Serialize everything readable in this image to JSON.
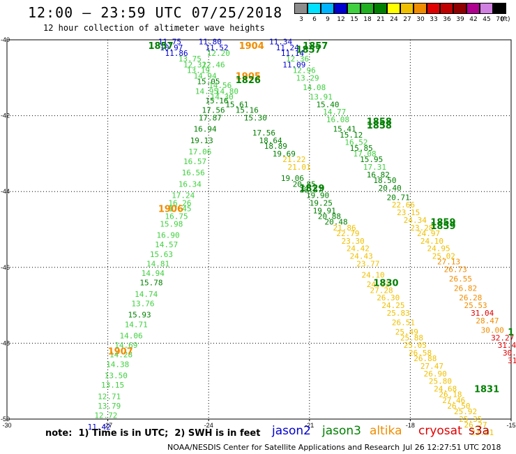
{
  "header": {
    "title": "12:00 – 23:59 UTC 07/25/2018",
    "subtitle": "12 hour collection of altimeter wave heights"
  },
  "legend": {
    "unit": "(ft)",
    "bins": [
      {
        "label": "3",
        "color": "#8c8c8c"
      },
      {
        "label": "6",
        "color": "#00e0ff"
      },
      {
        "label": "9",
        "color": "#00b4ff"
      },
      {
        "label": "12",
        "color": "#0000d0"
      },
      {
        "label": "15",
        "color": "#40d040"
      },
      {
        "label": "18",
        "color": "#20b020"
      },
      {
        "label": "21",
        "color": "#008000"
      },
      {
        "label": "24",
        "color": "#ffff00"
      },
      {
        "label": "27",
        "color": "#f0c000"
      },
      {
        "label": "30",
        "color": "#f08c00"
      },
      {
        "label": "33",
        "color": "#e00000"
      },
      {
        "label": "36",
        "color": "#c00000"
      },
      {
        "label": "39",
        "color": "#900000"
      },
      {
        "label": "42",
        "color": "#b00090"
      },
      {
        "label": "45",
        "color": "#d080e0"
      },
      {
        "label": "70",
        "color": "#000000"
      }
    ]
  },
  "axes": {
    "lon_ticks": [
      "-30",
      "-27",
      "-24",
      "-21",
      "-18",
      "-15"
    ],
    "lat_ticks": [
      "-40",
      "-42",
      "-44",
      "-46",
      "-48",
      "-50"
    ]
  },
  "map_data": {
    "extent": {
      "lon_min": -30,
      "lon_max": -15,
      "lat_min": -50,
      "lat_max": -40
    },
    "time_labels": [
      {
        "text": "1857",
        "lon": -25.8,
        "lat": -40.15,
        "color": "#008000"
      },
      {
        "text": "1904",
        "lon": -23.1,
        "lat": -40.15,
        "color": "#f08c00"
      },
      {
        "text": "1905",
        "lon": -23.2,
        "lat": -40.95,
        "color": "#f08c00"
      },
      {
        "text": "1826",
        "lon": -23.2,
        "lat": -41.05,
        "color": "#008000"
      },
      {
        "text": "1857",
        "lon": -21.2,
        "lat": -40.15,
        "color": "#008000"
      },
      {
        "text": "1857",
        "lon": -21.4,
        "lat": -40.25,
        "color": "#008000"
      },
      {
        "text": "1858",
        "lon": -19.3,
        "lat": -42.15,
        "color": "#008000"
      },
      {
        "text": "1858",
        "lon": -19.3,
        "lat": -42.25,
        "color": "#008000"
      },
      {
        "text": "1829",
        "lon": -21.3,
        "lat": -43.9,
        "color": "#008000"
      },
      {
        "text": "1906",
        "lon": -25.5,
        "lat": -44.45,
        "color": "#f08c00"
      },
      {
        "text": "1859",
        "lon": -17.4,
        "lat": -44.8,
        "color": "#008000"
      },
      {
        "text": "1859",
        "lon": -17.4,
        "lat": -44.9,
        "color": "#008000"
      },
      {
        "text": "1830",
        "lon": -19.1,
        "lat": -46.4,
        "color": "#008000"
      },
      {
        "text": "1907",
        "lon": -27.0,
        "lat": -48.2,
        "color": "#f08c00"
      },
      {
        "text": "1831",
        "lon": -16.1,
        "lat": -49.2,
        "color": "#008000"
      },
      {
        "text": "1",
        "lon": -15.1,
        "lat": -47.7,
        "color": "#008000"
      }
    ],
    "wave_heights": [
      {
        "v": "11.75",
        "lon": -25.5,
        "lat": -40.05,
        "color": "#0000d0"
      },
      {
        "v": "11.80",
        "lon": -24.3,
        "lat": -40.05,
        "color": "#0000d0"
      },
      {
        "v": "10.97",
        "lon": -25.45,
        "lat": -40.2,
        "color": "#0000d0"
      },
      {
        "v": "11.52",
        "lon": -24.1,
        "lat": -40.2,
        "color": "#0000d0"
      },
      {
        "v": "11.86",
        "lon": -25.3,
        "lat": -40.35,
        "color": "#0000d0"
      },
      {
        "v": "12.20",
        "lon": -24.05,
        "lat": -40.35,
        "color": "#40d040"
      },
      {
        "v": "13.75",
        "lon": -24.9,
        "lat": -40.5,
        "color": "#40d040"
      },
      {
        "v": "12.32",
        "lon": -24.75,
        "lat": -40.65,
        "color": "#40d040"
      },
      {
        "v": "12.46",
        "lon": -24.2,
        "lat": -40.65,
        "color": "#40d040"
      },
      {
        "v": "13.19",
        "lon": -24.65,
        "lat": -40.8,
        "color": "#40d040"
      },
      {
        "v": "14.94",
        "lon": -24.45,
        "lat": -40.95,
        "color": "#40d040"
      },
      {
        "v": "15.05",
        "lon": -24.35,
        "lat": -41.1,
        "color": "#008000"
      },
      {
        "v": "14.56",
        "lon": -24.0,
        "lat": -41.2,
        "color": "#40d040"
      },
      {
        "v": "14.95",
        "lon": -24.4,
        "lat": -41.35,
        "color": "#40d040"
      },
      {
        "v": "14.80",
        "lon": -23.8,
        "lat": -41.35,
        "color": "#40d040"
      },
      {
        "v": "14.30",
        "lon": -23.95,
        "lat": -41.5,
        "color": "#40d040"
      },
      {
        "v": "15.16",
        "lon": -24.1,
        "lat": -41.6,
        "color": "#008000"
      },
      {
        "v": "15.61",
        "lon": -23.5,
        "lat": -41.7,
        "color": "#008000"
      },
      {
        "v": "17.56",
        "lon": -24.2,
        "lat": -41.85,
        "color": "#008000"
      },
      {
        "v": "15.16",
        "lon": -23.2,
        "lat": -41.85,
        "color": "#008000"
      },
      {
        "v": "17.87",
        "lon": -24.3,
        "lat": -42.05,
        "color": "#008000"
      },
      {
        "v": "15.30",
        "lon": -22.95,
        "lat": -42.05,
        "color": "#008000"
      },
      {
        "v": "16.94",
        "lon": -24.45,
        "lat": -42.35,
        "color": "#008000"
      },
      {
        "v": "17.56",
        "lon": -22.7,
        "lat": -42.45,
        "color": "#008000"
      },
      {
        "v": "19.13",
        "lon": -24.55,
        "lat": -42.65,
        "color": "#008000"
      },
      {
        "v": "18.64",
        "lon": -22.5,
        "lat": -42.65,
        "color": "#008000"
      },
      {
        "v": "17.06",
        "lon": -24.6,
        "lat": -42.95,
        "color": "#40d040"
      },
      {
        "v": "18.89",
        "lon": -22.35,
        "lat": -42.8,
        "color": "#008000"
      },
      {
        "v": "19.69",
        "lon": -22.1,
        "lat": -43.0,
        "color": "#008000"
      },
      {
        "v": "16.57",
        "lon": -24.75,
        "lat": -43.2,
        "color": "#40d040"
      },
      {
        "v": "21.22",
        "lon": -21.8,
        "lat": -43.15,
        "color": "#f0c000"
      },
      {
        "v": "21.01",
        "lon": -21.65,
        "lat": -43.35,
        "color": "#f0c000"
      },
      {
        "v": "16.56",
        "lon": -24.8,
        "lat": -43.5,
        "color": "#40d040"
      },
      {
        "v": "19.06",
        "lon": -21.85,
        "lat": -43.65,
        "color": "#008000"
      },
      {
        "v": "16.34",
        "lon": -24.9,
        "lat": -43.8,
        "color": "#40d040"
      },
      {
        "v": "20.85",
        "lon": -21.5,
        "lat": -43.8,
        "color": "#008000"
      },
      {
        "v": "17.24",
        "lon": -25.1,
        "lat": -44.1,
        "color": "#40d040"
      },
      {
        "v": "19.57",
        "lon": -21.3,
        "lat": -43.95,
        "color": "#008000"
      },
      {
        "v": "16.26",
        "lon": -25.2,
        "lat": -44.3,
        "color": "#40d040"
      },
      {
        "v": "19.90",
        "lon": -21.1,
        "lat": -44.1,
        "color": "#008000"
      },
      {
        "v": "19.25",
        "lon": -21.0,
        "lat": -44.3,
        "color": "#008000"
      },
      {
        "v": "17.45",
        "lon": -25.2,
        "lat": -44.45,
        "color": "#40d040"
      },
      {
        "v": "19.91",
        "lon": -20.9,
        "lat": -44.5,
        "color": "#008000"
      },
      {
        "v": "16.75",
        "lon": -25.3,
        "lat": -44.65,
        "color": "#40d040"
      },
      {
        "v": "20.88",
        "lon": -20.75,
        "lat": -44.65,
        "color": "#008000"
      },
      {
        "v": "15.98",
        "lon": -25.45,
        "lat": -44.85,
        "color": "#40d040"
      },
      {
        "v": "20.48",
        "lon": -20.55,
        "lat": -44.8,
        "color": "#008000"
      },
      {
        "v": "21.86",
        "lon": -20.3,
        "lat": -44.95,
        "color": "#f0c000"
      },
      {
        "v": "16.90",
        "lon": -25.55,
        "lat": -45.15,
        "color": "#40d040"
      },
      {
        "v": "22.79",
        "lon": -20.2,
        "lat": -45.1,
        "color": "#f0c000"
      },
      {
        "v": "14.57",
        "lon": -25.6,
        "lat": -45.4,
        "color": "#40d040"
      },
      {
        "v": "23.30",
        "lon": -20.05,
        "lat": -45.3,
        "color": "#f0c000"
      },
      {
        "v": "15.63",
        "lon": -25.75,
        "lat": -45.65,
        "color": "#40d040"
      },
      {
        "v": "24.42",
        "lon": -19.9,
        "lat": -45.5,
        "color": "#f0c000"
      },
      {
        "v": "24.43",
        "lon": -19.8,
        "lat": -45.7,
        "color": "#f0c000"
      },
      {
        "v": "14.81",
        "lon": -25.85,
        "lat": -45.9,
        "color": "#40d040"
      },
      {
        "v": "23.77",
        "lon": -19.6,
        "lat": -45.9,
        "color": "#f0c000"
      },
      {
        "v": "14.94",
        "lon": -26.0,
        "lat": -46.15,
        "color": "#40d040"
      },
      {
        "v": "24.10",
        "lon": -19.45,
        "lat": -46.2,
        "color": "#f0c000"
      },
      {
        "v": "15.78",
        "lon": -26.05,
        "lat": -46.4,
        "color": "#008000"
      },
      {
        "v": "24.03",
        "lon": -19.3,
        "lat": -46.45,
        "color": "#f0c000"
      },
      {
        "v": "27.28",
        "lon": -19.2,
        "lat": -46.6,
        "color": "#f0c000"
      },
      {
        "v": "14.74",
        "lon": -26.2,
        "lat": -46.7,
        "color": "#40d040"
      },
      {
        "v": "26.30",
        "lon": -19.0,
        "lat": -46.8,
        "color": "#f0c000"
      },
      {
        "v": "13.76",
        "lon": -26.3,
        "lat": -46.95,
        "color": "#40d040"
      },
      {
        "v": "24.25",
        "lon": -18.85,
        "lat": -47.0,
        "color": "#f0c000"
      },
      {
        "v": "15.93",
        "lon": -26.4,
        "lat": -47.25,
        "color": "#008000"
      },
      {
        "v": "25.83",
        "lon": -18.7,
        "lat": -47.2,
        "color": "#f0c000"
      },
      {
        "v": "14.71",
        "lon": -26.5,
        "lat": -47.5,
        "color": "#40d040"
      },
      {
        "v": "26.51",
        "lon": -18.55,
        "lat": -47.45,
        "color": "#f0c000"
      },
      {
        "v": "25.49",
        "lon": -18.45,
        "lat": -47.7,
        "color": "#f0c000"
      },
      {
        "v": "14.06",
        "lon": -26.65,
        "lat": -47.8,
        "color": "#40d040"
      },
      {
        "v": "25.88",
        "lon": -18.3,
        "lat": -47.85,
        "color": "#f0c000"
      },
      {
        "v": "14.69",
        "lon": -26.8,
        "lat": -48.05,
        "color": "#40d040"
      },
      {
        "v": "25.05",
        "lon": -18.2,
        "lat": -48.05,
        "color": "#f0c000"
      },
      {
        "v": "26.58",
        "lon": -18.05,
        "lat": -48.25,
        "color": "#f0c000"
      },
      {
        "v": "14.28",
        "lon": -26.95,
        "lat": -48.3,
        "color": "#40d040"
      },
      {
        "v": "26.88",
        "lon": -17.9,
        "lat": -48.4,
        "color": "#f0c000"
      },
      {
        "v": "14.38",
        "lon": -27.05,
        "lat": -48.55,
        "color": "#40d040"
      },
      {
        "v": "27.47",
        "lon": -17.7,
        "lat": -48.6,
        "color": "#f0c000"
      },
      {
        "v": "13.50",
        "lon": -27.1,
        "lat": -48.85,
        "color": "#40d040"
      },
      {
        "v": "26.90",
        "lon": -17.6,
        "lat": -48.8,
        "color": "#f0c000"
      },
      {
        "v": "25.80",
        "lon": -17.45,
        "lat": -49.0,
        "color": "#f0c000"
      },
      {
        "v": "13.15",
        "lon": -27.2,
        "lat": -49.1,
        "color": "#40d040"
      },
      {
        "v": "24.68",
        "lon": -17.3,
        "lat": -49.2,
        "color": "#f0c000"
      },
      {
        "v": "26.18",
        "lon": -17.15,
        "lat": -49.35,
        "color": "#f0c000"
      },
      {
        "v": "12.71",
        "lon": -27.3,
        "lat": -49.4,
        "color": "#40d040"
      },
      {
        "v": "27.46",
        "lon": -17.05,
        "lat": -49.5,
        "color": "#f0c000"
      },
      {
        "v": "26.50",
        "lon": -16.9,
        "lat": -49.65,
        "color": "#f0c000"
      },
      {
        "v": "13.79",
        "lon": -27.3,
        "lat": -49.65,
        "color": "#40d040"
      },
      {
        "v": "25.92",
        "lon": -16.7,
        "lat": -49.8,
        "color": "#f0c000"
      },
      {
        "v": "12.72",
        "lon": -27.4,
        "lat": -49.9,
        "color": "#40d040"
      },
      {
        "v": "25.35",
        "lon": -16.55,
        "lat": -50.0,
        "color": "#f0c000"
      },
      {
        "v": "26.27",
        "lon": -16.4,
        "lat": -50.15,
        "color": "#f0c000"
      },
      {
        "v": "11.42",
        "lon": -27.6,
        "lat": -50.2,
        "color": "#0000d0"
      },
      {
        "v": "23.01",
        "lon": -16.2,
        "lat": -50.35,
        "color": "#f0c000"
      },
      {
        "v": "11.34",
        "lon": -22.2,
        "lat": -40.05,
        "color": "#0000d0"
      },
      {
        "v": "11.24",
        "lon": -22.0,
        "lat": -40.2,
        "color": "#0000d0"
      },
      {
        "v": "11.14",
        "lon": -21.85,
        "lat": -40.35,
        "color": "#0000d0"
      },
      {
        "v": "12.36",
        "lon": -21.7,
        "lat": -40.5,
        "color": "#40d040"
      },
      {
        "v": "11.09",
        "lon": -21.8,
        "lat": -40.65,
        "color": "#0000d0"
      },
      {
        "v": "12.96",
        "lon": -21.5,
        "lat": -40.8,
        "color": "#40d040"
      },
      {
        "v": "13.29",
        "lon": -21.4,
        "lat": -41.0,
        "color": "#40d040"
      },
      {
        "v": "14.08",
        "lon": -21.2,
        "lat": -41.25,
        "color": "#40d040"
      },
      {
        "v": "13.91",
        "lon": -21.0,
        "lat": -41.5,
        "color": "#40d040"
      },
      {
        "v": "15.40",
        "lon": -20.8,
        "lat": -41.7,
        "color": "#008000"
      },
      {
        "v": "14.77",
        "lon": -20.6,
        "lat": -41.9,
        "color": "#40d040"
      },
      {
        "v": "16.08",
        "lon": -20.5,
        "lat": -42.1,
        "color": "#40d040"
      },
      {
        "v": "15.41",
        "lon": -20.3,
        "lat": -42.35,
        "color": "#008000"
      },
      {
        "v": "15.12",
        "lon": -20.1,
        "lat": -42.5,
        "color": "#008000"
      },
      {
        "v": "16.52",
        "lon": -19.95,
        "lat": -42.7,
        "color": "#40d040"
      },
      {
        "v": "15.85",
        "lon": -19.8,
        "lat": -42.85,
        "color": "#008000"
      },
      {
        "v": "17.08",
        "lon": -19.7,
        "lat": -43.0,
        "color": "#40d040"
      },
      {
        "v": "15.95",
        "lon": -19.5,
        "lat": -43.15,
        "color": "#008000"
      },
      {
        "v": "17.31",
        "lon": -19.4,
        "lat": -43.35,
        "color": "#40d040"
      },
      {
        "v": "16.82",
        "lon": -19.3,
        "lat": -43.55,
        "color": "#008000"
      },
      {
        "v": "18.50",
        "lon": -19.1,
        "lat": -43.7,
        "color": "#008000"
      },
      {
        "v": "20.40",
        "lon": -18.95,
        "lat": -43.9,
        "color": "#008000"
      },
      {
        "v": "20.71",
        "lon": -18.7,
        "lat": -44.15,
        "color": "#008000"
      },
      {
        "v": "22.66",
        "lon": -18.55,
        "lat": -44.35,
        "color": "#f0c000"
      },
      {
        "v": "23.15",
        "lon": -18.4,
        "lat": -44.55,
        "color": "#f0c000"
      },
      {
        "v": "24.34",
        "lon": -18.2,
        "lat": -44.75,
        "color": "#f0c000"
      },
      {
        "v": "23.28",
        "lon": -18.0,
        "lat": -44.95,
        "color": "#f0c000"
      },
      {
        "v": "24.97",
        "lon": -17.8,
        "lat": -45.1,
        "color": "#f0c000"
      },
      {
        "v": "24.10",
        "lon": -17.7,
        "lat": -45.3,
        "color": "#f0c000"
      },
      {
        "v": "24.95",
        "lon": -17.5,
        "lat": -45.5,
        "color": "#f0c000"
      },
      {
        "v": "25.02",
        "lon": -17.35,
        "lat": -45.7,
        "color": "#f0c000"
      },
      {
        "v": "27.13",
        "lon": -17.2,
        "lat": -45.85,
        "color": "#f08c00"
      },
      {
        "v": "26.73",
        "lon": -17.0,
        "lat": -46.05,
        "color": "#f08c00"
      },
      {
        "v": "26.55",
        "lon": -16.85,
        "lat": -46.3,
        "color": "#f08c00"
      },
      {
        "v": "26.82",
        "lon": -16.7,
        "lat": -46.55,
        "color": "#f08c00"
      },
      {
        "v": "26.28",
        "lon": -16.55,
        "lat": -46.8,
        "color": "#f08c00"
      },
      {
        "v": "25.53",
        "lon": -16.4,
        "lat": -47.0,
        "color": "#f08c00"
      },
      {
        "v": "31.04",
        "lon": -16.2,
        "lat": -47.2,
        "color": "#e00000"
      },
      {
        "v": "28.47",
        "lon": -16.05,
        "lat": -47.4,
        "color": "#f08c00"
      },
      {
        "v": "30.00",
        "lon": -15.9,
        "lat": -47.65,
        "color": "#f08c00"
      },
      {
        "v": "32.27",
        "lon": -15.6,
        "lat": -47.85,
        "color": "#e00000"
      },
      {
        "v": "31.44",
        "lon": -15.4,
        "lat": -48.05,
        "color": "#e00000"
      },
      {
        "v": "30.4",
        "lon": -15.25,
        "lat": -48.25,
        "color": "#e00000"
      },
      {
        "v": "31.",
        "lon": -15.1,
        "lat": -48.45,
        "color": "#e00000"
      }
    ]
  },
  "footer": {
    "note": "note:  1) Time is in UTC;  2) SWH is in feet",
    "satellites": [
      {
        "name": "jason2",
        "color": "#0000d0"
      },
      {
        "name": "jason3",
        "color": "#008000"
      },
      {
        "name": "altika",
        "color": "#f08c00"
      },
      {
        "name": "cryosat",
        "color": "#e00000"
      },
      {
        "name": "s3a",
        "color": "#b00000"
      }
    ],
    "credit": "NOAA/NESDIS Center for Satellite Applications and Research",
    "timestamp": "Jul 26 12:27:51 UTC 2018"
  }
}
